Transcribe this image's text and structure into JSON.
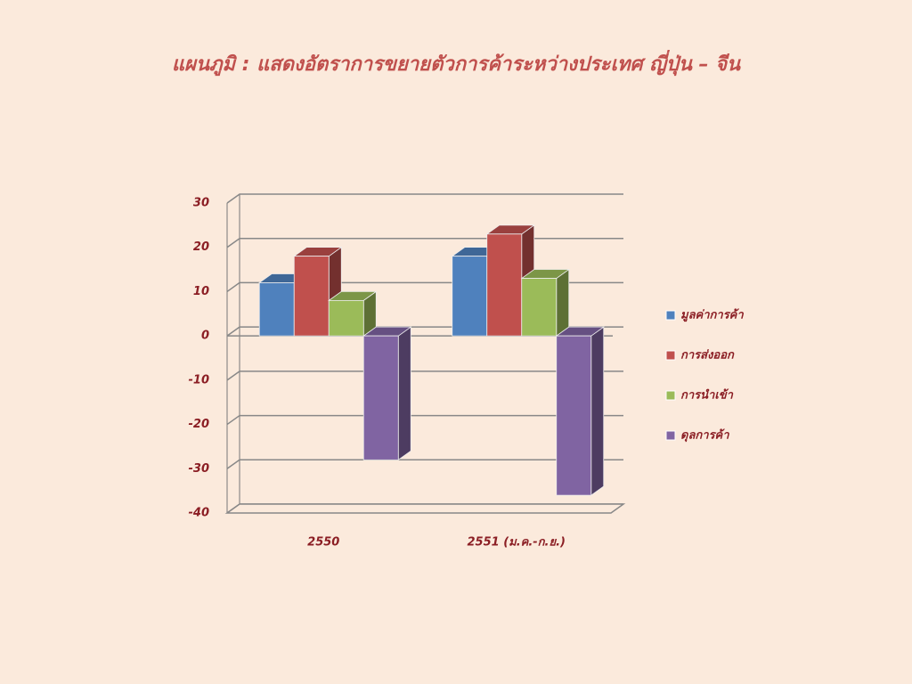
{
  "chart_data": {
    "type": "bar3d",
    "title": "แผนภูมิ : แสดงอัตราการขยายตัวการค้าระหว่างประเทศ ญี่ปุ่น – จีน",
    "categories": [
      "2550",
      "2551 (ม.ค.-ก.ย.)"
    ],
    "series": [
      {
        "name": "มูลค่าการค้า",
        "color": "#4f81bd",
        "values": [
          12,
          18
        ]
      },
      {
        "name": "การส่งออก",
        "color": "#c0504d",
        "values": [
          18,
          23
        ]
      },
      {
        "name": "การนำเข้า",
        "color": "#9bbb59",
        "values": [
          8,
          13
        ]
      },
      {
        "name": "ดุลการค้า",
        "color": "#8064a2",
        "values": [
          -28,
          -36
        ]
      }
    ],
    "ylim": [
      -40,
      30
    ],
    "yticks": [
      -40,
      -30,
      -20,
      -10,
      0,
      10,
      20,
      30
    ],
    "grid": true
  }
}
